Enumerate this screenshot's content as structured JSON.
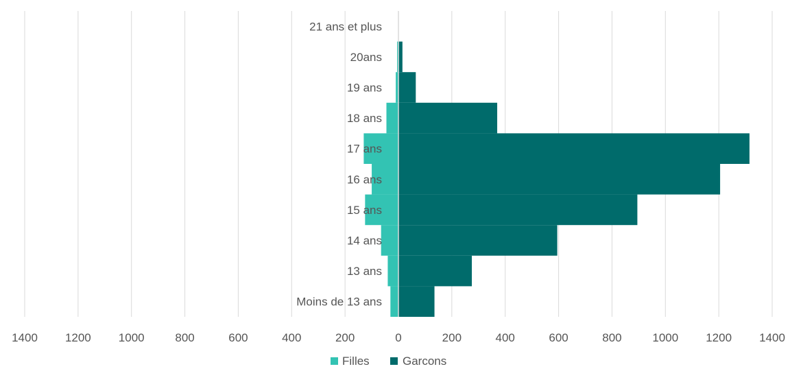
{
  "chart_data": {
    "type": "bar",
    "orientation": "horizontal-population-pyramid",
    "categories": [
      "Moins de 13 ans",
      "13 ans",
      "14 ans",
      "15 ans",
      "16 ans",
      "17 ans",
      "18 ans",
      "19 ans",
      "20ans",
      "21 ans et plus"
    ],
    "series": [
      {
        "name": "Filles",
        "values": [
          30,
          40,
          65,
          125,
          100,
          130,
          45,
          10,
          5,
          0
        ],
        "color": "#33c3b3"
      },
      {
        "name": "Garcons",
        "values": [
          135,
          275,
          595,
          895,
          1205,
          1315,
          370,
          65,
          15,
          0
        ],
        "color": "#006b6b"
      }
    ],
    "xlim": [
      -1400,
      1400
    ],
    "xticks": [
      -1400,
      -1200,
      -1000,
      -800,
      -600,
      -400,
      -200,
      0,
      200,
      400,
      600,
      800,
      1000,
      1200,
      1400
    ],
    "xtick_labels": [
      "1400",
      "1200",
      "1000",
      "800",
      "600",
      "400",
      "200",
      "0",
      "200",
      "400",
      "600",
      "800",
      "1000",
      "1200",
      "1400"
    ],
    "grid": "vertical",
    "legend_position": "bottom",
    "title": "",
    "xlabel": "",
    "ylabel": ""
  }
}
